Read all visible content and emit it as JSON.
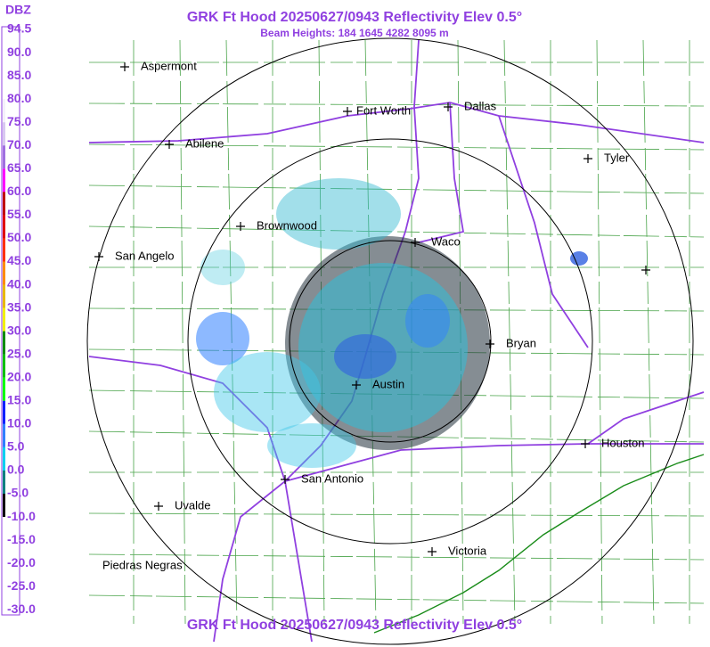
{
  "header": {
    "title": "GRK Ft Hood 20250627/0943 Reflectivity Elev 0.5°",
    "subtitle": "Beam Heights: 184 1645 4282 8095 m",
    "footer": "GRK Ft Hood 20250627/0943 Reflectivity Elev 0.5°"
  },
  "legend": {
    "title": "DBZ",
    "entries": [
      {
        "label": "94.5",
        "color": "#ffffff"
      },
      {
        "label": "90.0",
        "color": "#ffffff"
      },
      {
        "label": "85.0",
        "color": "#ffffff"
      },
      {
        "label": "80.0",
        "color": "#f4f0fa"
      },
      {
        "label": "75.0",
        "color": "#d8c8f0"
      },
      {
        "label": "70.0",
        "color": "#a070e0"
      },
      {
        "label": "65.0",
        "color": "#ff00ff"
      },
      {
        "label": "60.0",
        "color": "#c00000"
      },
      {
        "label": "55.0",
        "color": "#e00000"
      },
      {
        "label": "50.0",
        "color": "#ff3000"
      },
      {
        "label": "45.0",
        "color": "#ff8c00"
      },
      {
        "label": "40.0",
        "color": "#e8b800"
      },
      {
        "label": "35.0",
        "color": "#f0f000"
      },
      {
        "label": "30.0",
        "color": "#008c00"
      },
      {
        "label": "25.0",
        "color": "#00c000"
      },
      {
        "label": "20.0",
        "color": "#00ff00"
      },
      {
        "label": "15.0",
        "color": "#0020ff"
      },
      {
        "label": "10.0",
        "color": "#3080ff"
      },
      {
        "label": "5.0",
        "color": "#00d0f0"
      },
      {
        "label": "0.0",
        "color": "#008080"
      },
      {
        "label": "-5.0",
        "color": "#000000"
      },
      {
        "label": "-10.0",
        "color": "#ffffff"
      },
      {
        "label": "-15.0",
        "color": "#ffffff"
      },
      {
        "label": "-20.0",
        "color": "#ffffff"
      },
      {
        "label": "-25.0",
        "color": "#ffffff"
      },
      {
        "label": "-30.0",
        "color": "#ffffff"
      }
    ]
  },
  "cities": [
    {
      "name": "Aspermont"
    },
    {
      "name": "Abilene"
    },
    {
      "name": "Fort Worth"
    },
    {
      "name": "Dallas"
    },
    {
      "name": "Tyler"
    },
    {
      "name": "Brownwood"
    },
    {
      "name": "Waco"
    },
    {
      "name": "San Angelo"
    },
    {
      "name": "Bryan"
    },
    {
      "name": "Austin"
    },
    {
      "name": "Houston"
    },
    {
      "name": "San Antonio"
    },
    {
      "name": "Uvalde"
    },
    {
      "name": "Victoria"
    },
    {
      "name": "Piedras Negras"
    }
  ]
}
